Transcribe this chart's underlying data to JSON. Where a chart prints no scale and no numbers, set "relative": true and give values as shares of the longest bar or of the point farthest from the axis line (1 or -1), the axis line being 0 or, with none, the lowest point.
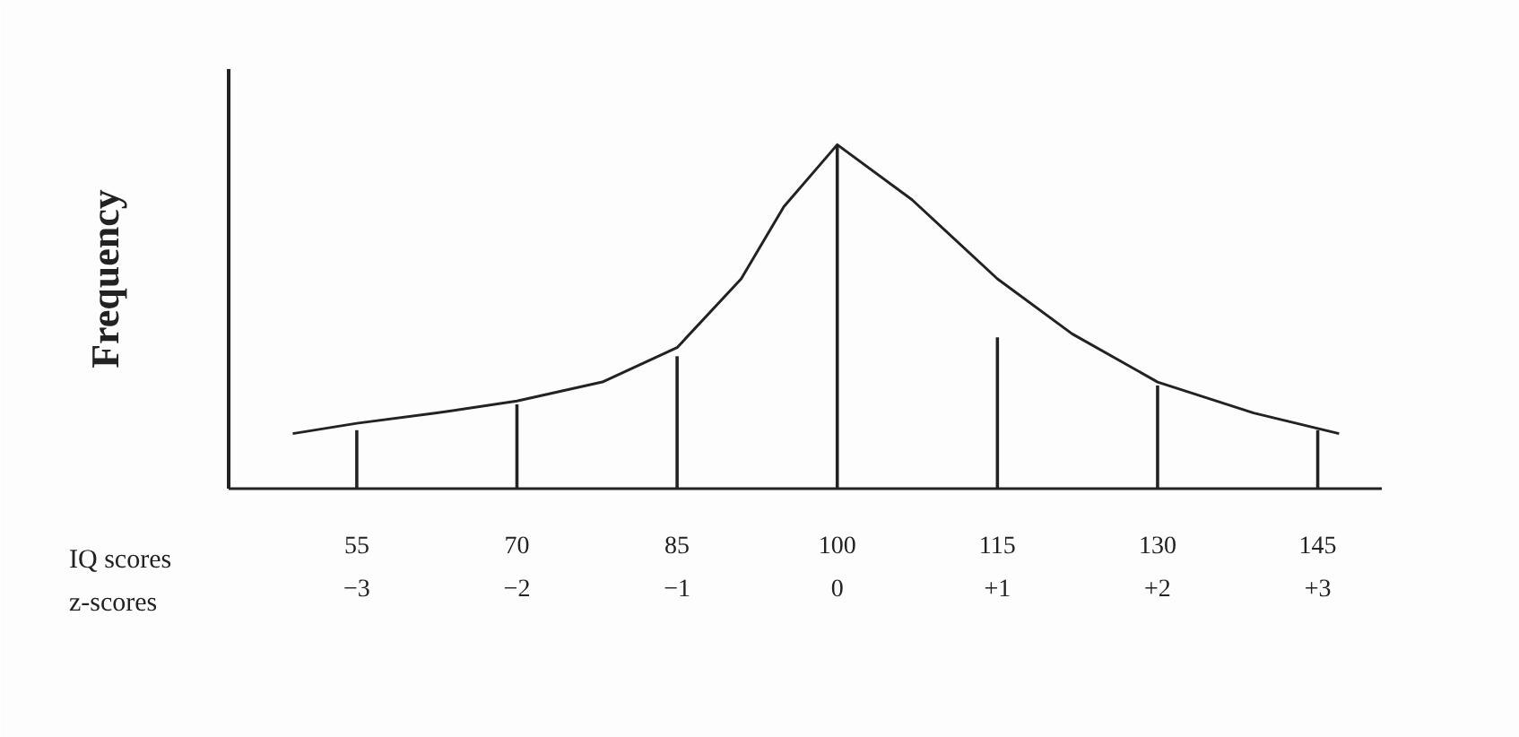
{
  "chart_data": {
    "type": "line",
    "relative": true,
    "ylabel": "Frequency",
    "xlabel": "IQ scores",
    "x2label": "z-scores",
    "xlim": [
      43,
      151
    ],
    "xticks": [
      55,
      70,
      85,
      100,
      115,
      130,
      145
    ],
    "x2lim": [
      -3.8,
      3.4
    ],
    "x2ticks": [
      -3,
      -2,
      -1,
      0,
      {
        "value": 1,
        "label": "+1"
      },
      {
        "value": 2,
        "label": "+2"
      },
      {
        "value": 3,
        "label": "+3"
      }
    ],
    "grid": false,
    "series": [
      {
        "type": "line",
        "color": "#222222",
        "x": [
          49,
          55,
          62.5,
          70,
          78,
          85,
          91,
          95,
          100,
          107,
          115,
          122,
          130,
          139,
          147
        ],
        "values": [
          0.16,
          0.19,
          0.22,
          0.255,
          0.31,
          0.41,
          0.61,
          0.82,
          1.0,
          0.84,
          0.61,
          0.45,
          0.31,
          0.22,
          0.16
        ]
      },
      {
        "type": "bar",
        "color": "#222222",
        "x": [
          55,
          70,
          85,
          100,
          115,
          130,
          145
        ],
        "values": [
          0.17,
          0.245,
          0.385,
          1.0,
          0.44,
          0.3,
          0.17
        ]
      }
    ]
  }
}
